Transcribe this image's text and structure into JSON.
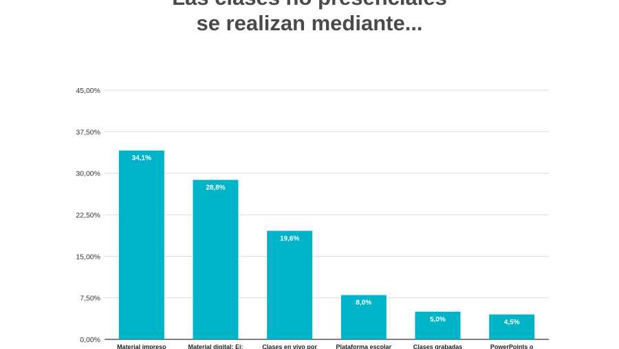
{
  "header": {
    "title_line1": "Las clases no presenciales",
    "title_line2": "se realizan mediante..."
  },
  "chart_data": {
    "type": "bar",
    "title": "Las clases no presenciales se realizan mediante...",
    "categories": [
      "Material impreso",
      "Material digital: Ej:",
      "Clases en vivo por",
      "Plataforma escolar",
      "Clases grabadas",
      "PowerPoints o"
    ],
    "values": [
      34.1,
      28.8,
      19.6,
      8.0,
      5.0,
      4.5
    ],
    "data_labels": [
      "34,1%",
      "28,8%",
      "19,6%",
      "8,0%",
      "5,0%",
      "4,5%"
    ],
    "y_ticks": [
      0,
      7.5,
      15,
      22.5,
      30,
      37.5,
      45
    ],
    "y_tick_labels": [
      "0,00%",
      "7,50%",
      "15,00%",
      "22,50%",
      "30,00%",
      "37,50%",
      "45,00%"
    ],
    "ylim": [
      0,
      45
    ],
    "xlabel": "",
    "ylabel": "",
    "grid": true,
    "bar_color": "#00b4c8"
  }
}
